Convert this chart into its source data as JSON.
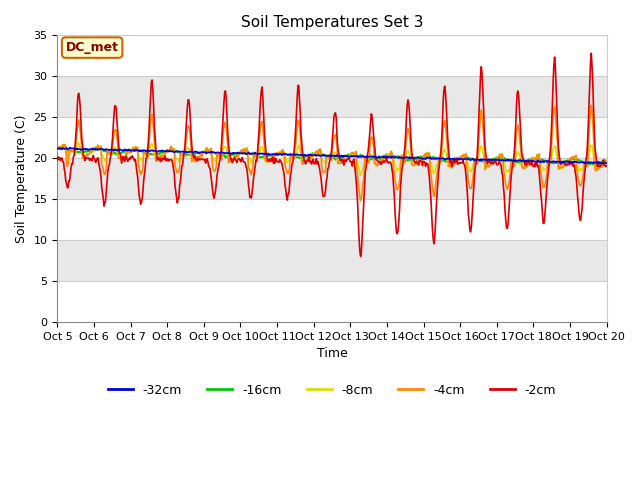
{
  "title": "Soil Temperatures Set 3",
  "xlabel": "Time",
  "ylabel": "Soil Temperature (C)",
  "xlim": [
    0,
    15
  ],
  "ylim": [
    0,
    35
  ],
  "yticks": [
    0,
    5,
    10,
    15,
    20,
    25,
    30,
    35
  ],
  "xtick_labels": [
    "Oct 5",
    "Oct 6",
    "Oct 7",
    "Oct 8",
    "Oct 9",
    "Oct 10",
    "Oct 11",
    "Oct 12",
    "Oct 13",
    "Oct 14",
    "Oct 15",
    "Oct 16",
    "Oct 17",
    "Oct 18",
    "Oct 19",
    "Oct 20"
  ],
  "annotation_text": "DC_met",
  "annotation_bg": "#ffffcc",
  "annotation_border": "#cc6600",
  "fig_bg": "#ffffff",
  "plot_bg": "#ffffff",
  "band_colors": [
    "#ffffff",
    "#e8e8e8"
  ],
  "grid_color": "#cccccc",
  "series_colors": {
    "-32cm": "#0000dd",
    "-16cm": "#00cc00",
    "-8cm": "#dddd00",
    "-4cm": "#ff8800",
    "-2cm": "#dd0000"
  },
  "lw": 1.2,
  "title_fontsize": 11,
  "label_fontsize": 9,
  "tick_fontsize": 8,
  "legend_fontsize": 9
}
